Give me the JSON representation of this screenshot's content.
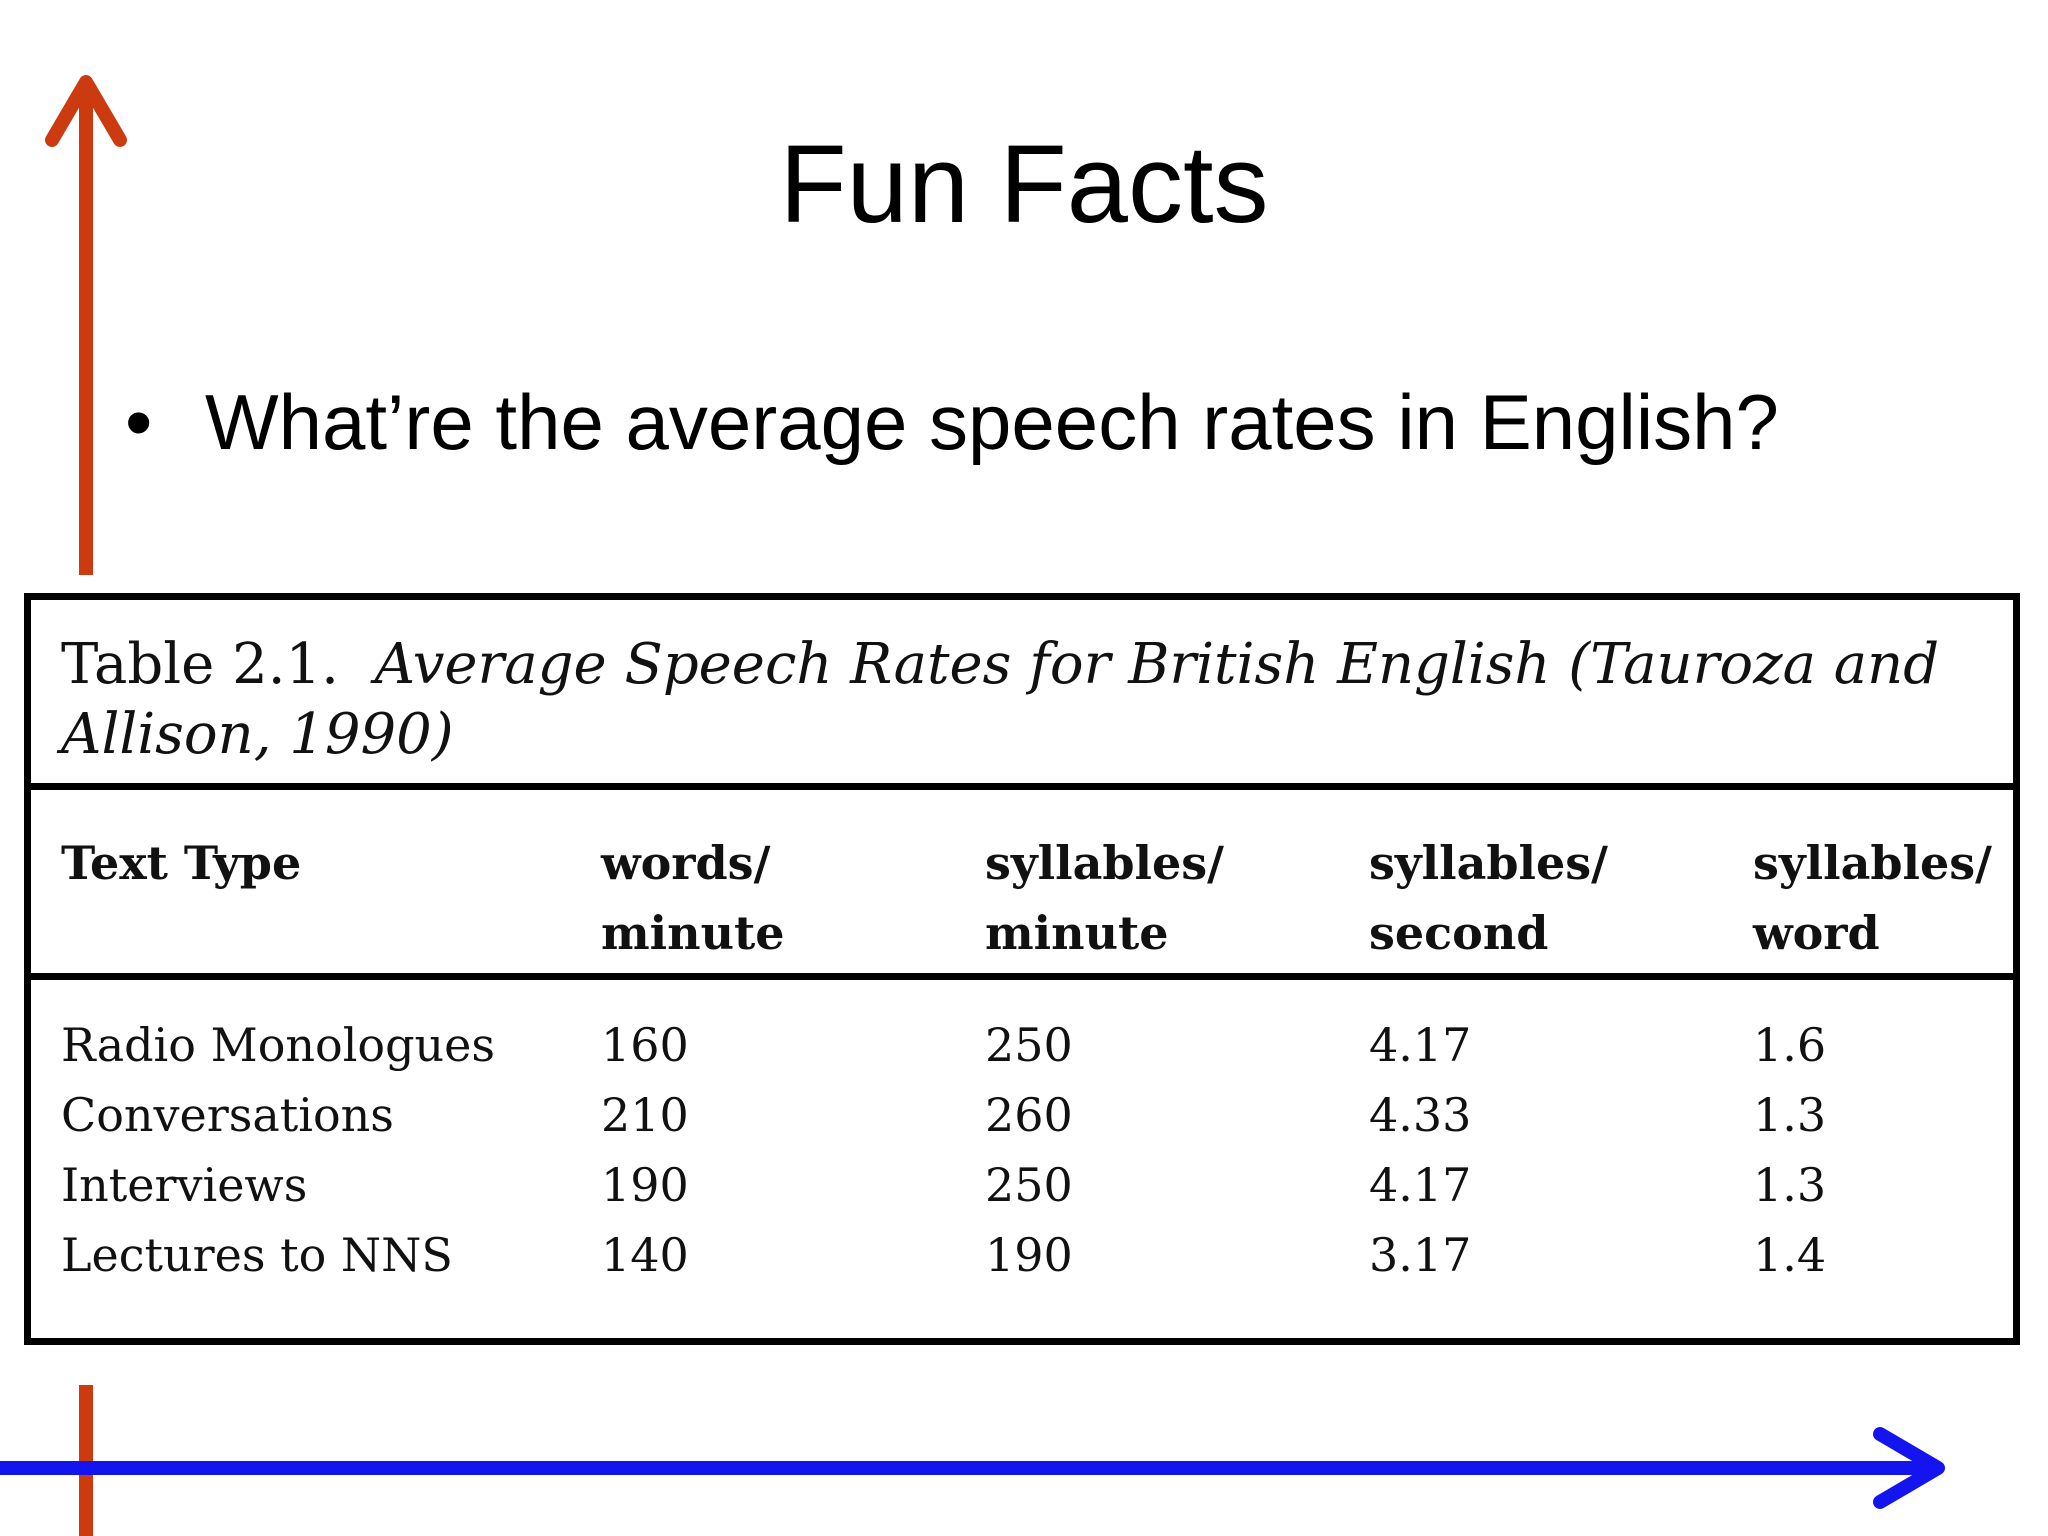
{
  "slide": {
    "title": "Fun Facts",
    "bullet": "What’re the average speech rates in English?"
  },
  "colors": {
    "vertical_arrow": "#cc3a10",
    "horizontal_arrow": "#1414ee",
    "table_border": "#000000"
  },
  "table": {
    "caption_label": "Table 2.1.",
    "caption_title": "Average Speech Rates for British English (Tauroza and Allison, 1990)",
    "headers": [
      "Text Type",
      "words/\nminute",
      "syllables/\nminute",
      "syllables/\nsecond",
      "syllables/\nword"
    ],
    "rows": [
      [
        "Radio Monologues",
        "160",
        "250",
        "4.17",
        "1.6"
      ],
      [
        "Conversations",
        "210",
        "260",
        "4.33",
        "1.3"
      ],
      [
        "Interviews",
        "190",
        "250",
        "4.17",
        "1.3"
      ],
      [
        "Lectures to NNS",
        "140",
        "190",
        "3.17",
        "1.4"
      ]
    ]
  }
}
